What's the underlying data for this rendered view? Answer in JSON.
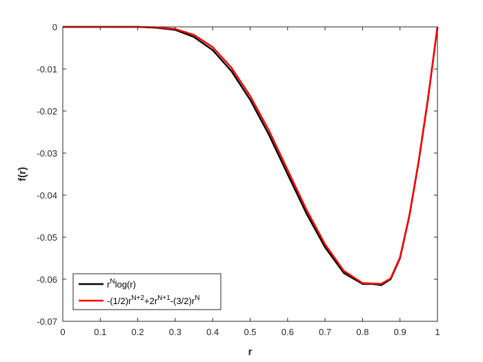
{
  "chart_data": {
    "type": "line",
    "xlabel": "r",
    "ylabel": "f(r)",
    "xlim": [
      0,
      1
    ],
    "ylim": [
      -0.07,
      0
    ],
    "xticks": [
      0,
      0.1,
      0.2,
      0.3,
      0.4,
      0.5,
      0.6,
      0.7,
      0.8,
      0.9,
      1
    ],
    "xtick_labels": [
      "0",
      "0.1",
      "0.2",
      "0.3",
      "0.4",
      "0.5",
      "0.6",
      "0.7",
      "0.8",
      "0.9",
      "1"
    ],
    "yticks": [
      0,
      -0.01,
      -0.02,
      -0.03,
      -0.04,
      -0.05,
      -0.06,
      -0.07
    ],
    "ytick_labels": [
      "0",
      "-0.01",
      "-0.02",
      "-0.03",
      "-0.04",
      "-0.05",
      "-0.06",
      "-0.07"
    ],
    "grid": false,
    "legend_position": "bottom-left",
    "series": [
      {
        "name": "r^N log(r)",
        "legend_parts": [
          "r",
          "N",
          "log(r)"
        ],
        "color": "#000000",
        "x": [
          0,
          0.05,
          0.1,
          0.15,
          0.2,
          0.25,
          0.3,
          0.35,
          0.4,
          0.45,
          0.5,
          0.55,
          0.6,
          0.65,
          0.7,
          0.75,
          0.8,
          0.825,
          0.85,
          0.875,
          0.9,
          0.925,
          0.95,
          0.975,
          1
        ],
        "values": [
          0,
          0,
          0,
          0,
          0,
          -0.0002,
          -0.0007,
          -0.0024,
          -0.0055,
          -0.0105,
          -0.0173,
          -0.0256,
          -0.035,
          -0.0443,
          -0.0524,
          -0.0585,
          -0.0611,
          -0.0611,
          -0.0614,
          -0.06,
          -0.055,
          -0.045,
          -0.032,
          -0.017,
          0
        ]
      },
      {
        "name": "-(1/2)r^(N+2)+2r^(N+1)-(3/2)r^N",
        "legend_parts": [
          "-(1/2)r",
          "N+2",
          "+2r",
          "N+1",
          "-(3/2)r",
          "N"
        ],
        "color": "#ff0000",
        "x": [
          0,
          0.05,
          0.1,
          0.15,
          0.2,
          0.25,
          0.3,
          0.35,
          0.4,
          0.45,
          0.5,
          0.55,
          0.6,
          0.65,
          0.7,
          0.75,
          0.8,
          0.825,
          0.85,
          0.875,
          0.9,
          0.925,
          0.95,
          0.975,
          1
        ],
        "values": [
          0,
          0,
          0,
          0,
          0,
          -0.0001,
          -0.0005,
          -0.0019,
          -0.0048,
          -0.0097,
          -0.0164,
          -0.0246,
          -0.034,
          -0.0434,
          -0.0517,
          -0.058,
          -0.0609,
          -0.061,
          -0.0611,
          -0.0598,
          -0.0548,
          -0.0448,
          -0.0318,
          -0.0168,
          0
        ]
      }
    ]
  }
}
